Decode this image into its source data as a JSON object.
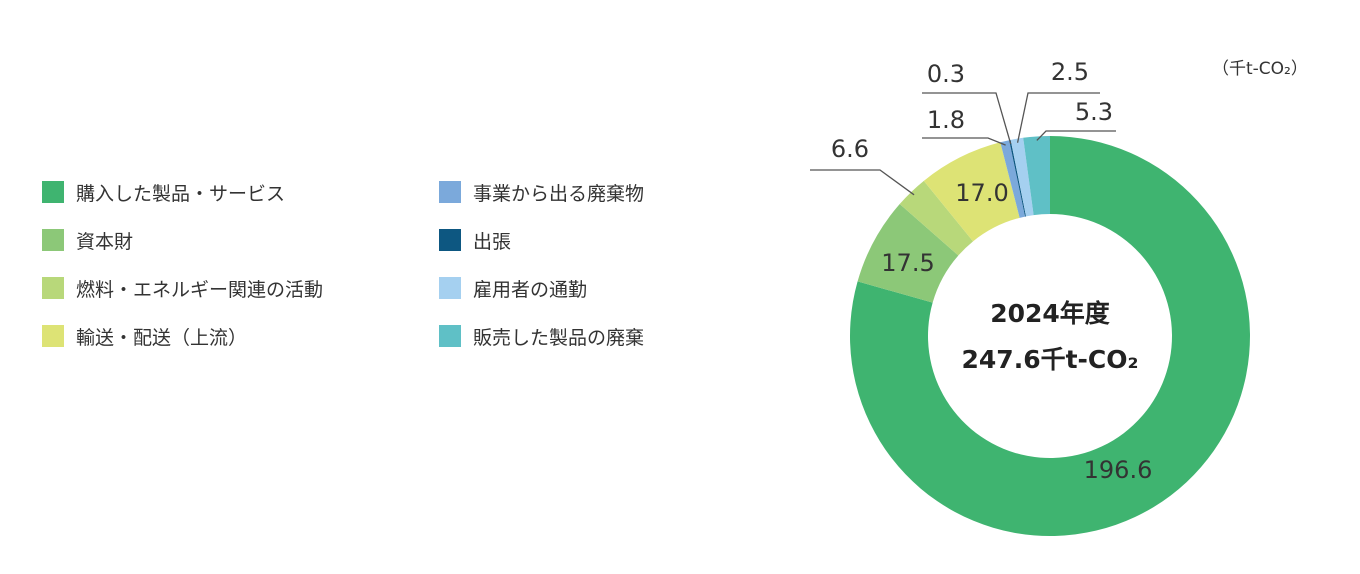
{
  "chart_data": {
    "type": "pie",
    "unit": "（千t-CO₂）",
    "center": {
      "year": "2024年度",
      "total": "247.6千t-CO₂"
    },
    "slices": [
      {
        "name": "購入した製品・サービス",
        "value": 196.6,
        "label": "196.6",
        "color": "#3fb470"
      },
      {
        "name": "資本財",
        "value": 17.5,
        "label": "17.5",
        "color": "#8cc878"
      },
      {
        "name": "燃料・エネルギー関連の活動",
        "value": 6.6,
        "label": "6.6",
        "color": "#b8d87a"
      },
      {
        "name": "輸送・配送（上流）",
        "value": 17.0,
        "label": "17.0",
        "color": "#dde375"
      },
      {
        "name": "事業から出る廃棄物",
        "value": 1.8,
        "label": "1.8",
        "color": "#7ba9db"
      },
      {
        "name": "出張",
        "value": 0.3,
        "label": "0.3",
        "color": "#0d5781"
      },
      {
        "name": "雇用者の通勤",
        "value": 2.5,
        "label": "2.5",
        "color": "#a5d0f0"
      },
      {
        "name": "販売した製品の廃棄",
        "value": 5.3,
        "label": "5.3",
        "color": "#5fc0c6"
      }
    ]
  },
  "legend": {
    "col1": [
      {
        "label": "購入した製品・サービス",
        "color": "#3fb470"
      },
      {
        "label": "資本財",
        "color": "#8cc878"
      },
      {
        "label": "燃料・エネルギー関連の活動",
        "color": "#b8d87a"
      },
      {
        "label": "輸送・配送（上流）",
        "color": "#dde375"
      }
    ],
    "col2": [
      {
        "label": "事業から出る廃棄物",
        "color": "#7ba9db"
      },
      {
        "label": "出張",
        "color": "#0d5781"
      },
      {
        "label": "雇用者の通勤",
        "color": "#a5d0f0"
      },
      {
        "label": "販売した製品の廃棄",
        "color": "#5fc0c6"
      }
    ]
  }
}
